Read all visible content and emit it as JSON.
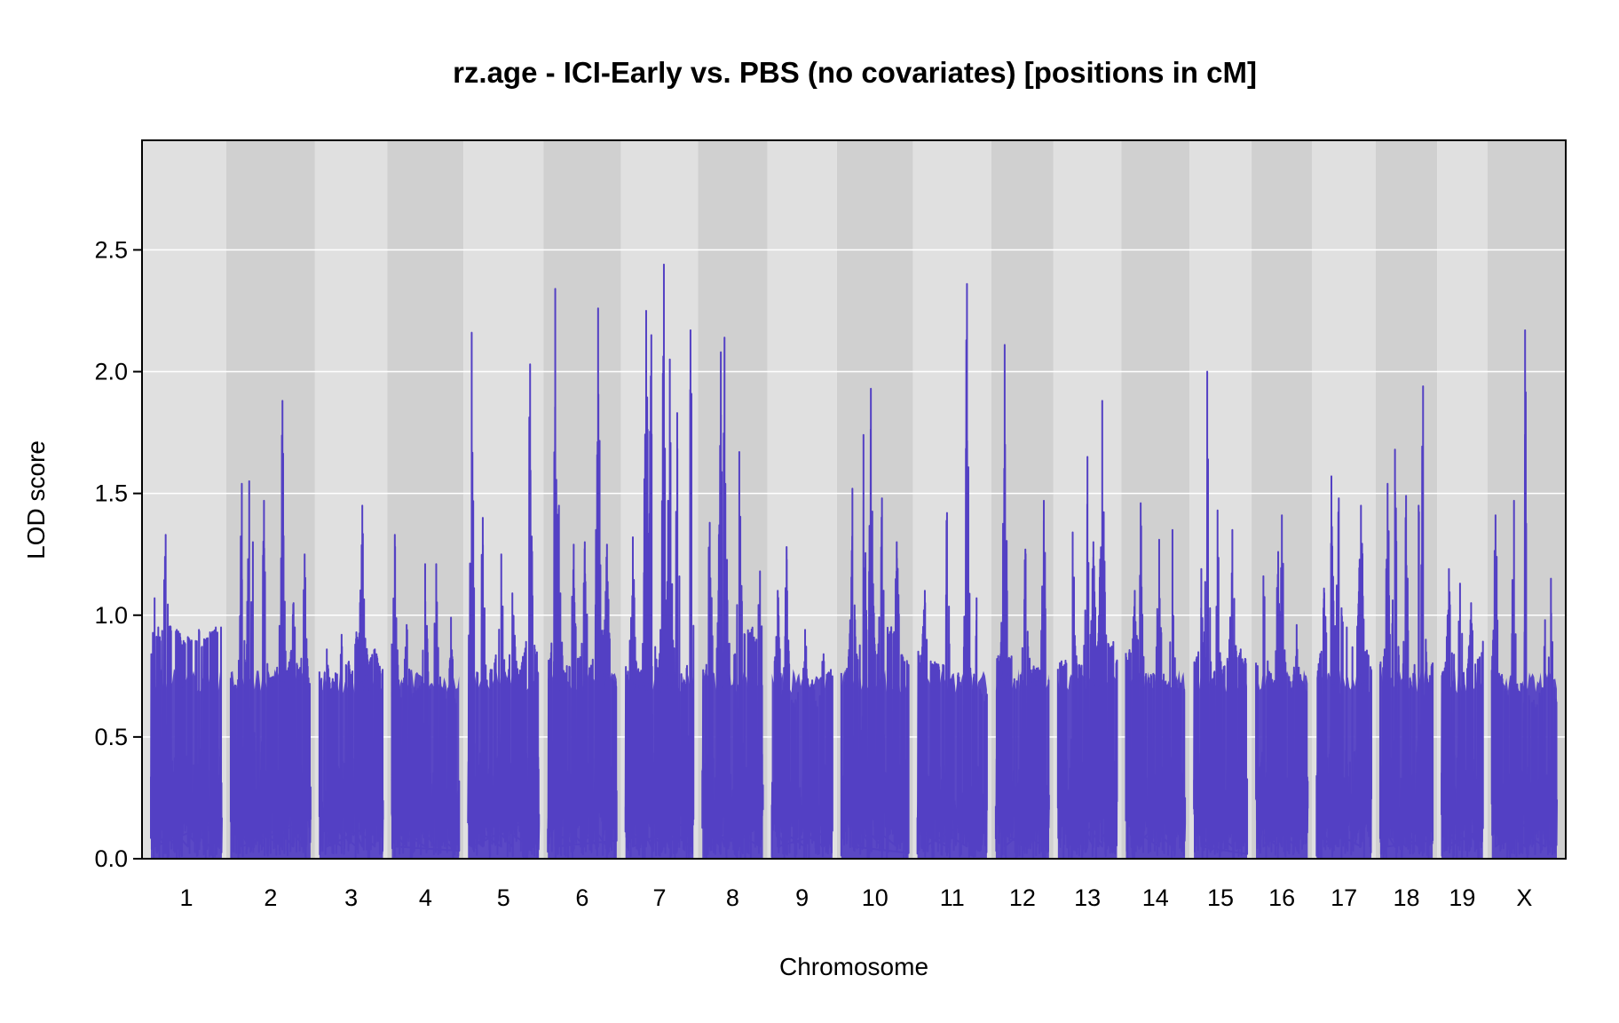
{
  "chart_data": {
    "type": "line",
    "title": "rz.age - ICI-Early vs. PBS (no covariates) [positions in cM]",
    "xlabel": "Chromosome",
    "ylabel": "LOD score",
    "ylim": [
      0,
      2.95
    ],
    "yticks": [
      "0.0",
      "0.5",
      "1.0",
      "1.5",
      "2.0",
      "2.5"
    ],
    "grid": true,
    "series_color": "#5340c4",
    "band_colors": [
      "#e0e0e0",
      "#d0d0d0"
    ],
    "chromosomes": [
      {
        "name": "1",
        "length": 96,
        "peaks": [
          [
            5,
            1.07
          ],
          [
            10,
            0.95
          ],
          [
            20,
            1.33
          ],
          [
            35,
            0.94
          ],
          [
            50,
            0.91
          ],
          [
            65,
            0.94
          ],
          [
            80,
            0.93
          ]
        ]
      },
      {
        "name": "2",
        "length": 108,
        "peaks": [
          [
            15,
            1.54
          ],
          [
            25,
            1.55
          ],
          [
            30,
            1.3
          ],
          [
            45,
            1.47
          ],
          [
            70,
            1.88
          ],
          [
            85,
            1.05
          ],
          [
            100,
            1.25
          ]
        ]
      },
      {
        "name": "3",
        "length": 86,
        "peaks": [
          [
            10,
            0.86
          ],
          [
            30,
            0.92
          ],
          [
            50,
            0.93
          ],
          [
            58,
            1.45
          ],
          [
            75,
            0.86
          ]
        ]
      },
      {
        "name": "4",
        "length": 91,
        "peaks": [
          [
            4,
            1.33
          ],
          [
            20,
            0.96
          ],
          [
            45,
            1.21
          ],
          [
            60,
            1.21
          ],
          [
            80,
            0.99
          ]
        ]
      },
      {
        "name": "5",
        "length": 96,
        "peaks": [
          [
            5,
            2.16
          ],
          [
            20,
            1.4
          ],
          [
            45,
            1.25
          ],
          [
            60,
            1.09
          ],
          [
            84,
            2.03
          ]
        ]
      },
      {
        "name": "6",
        "length": 93,
        "peaks": [
          [
            10,
            2.34
          ],
          [
            15,
            1.45
          ],
          [
            35,
            1.29
          ],
          [
            50,
            1.3
          ],
          [
            68,
            2.26
          ],
          [
            80,
            1.29
          ]
        ]
      },
      {
        "name": "7",
        "length": 92,
        "peaks": [
          [
            10,
            1.32
          ],
          [
            28,
            2.25
          ],
          [
            35,
            2.15
          ],
          [
            52,
            2.44
          ],
          [
            60,
            2.05
          ],
          [
            70,
            1.83
          ],
          [
            88,
            2.17
          ]
        ]
      },
      {
        "name": "8",
        "length": 82,
        "peaks": [
          [
            10,
            1.38
          ],
          [
            25,
            2.08
          ],
          [
            30,
            2.14
          ],
          [
            50,
            1.67
          ],
          [
            78,
            1.18
          ]
        ]
      },
      {
        "name": "9",
        "length": 82,
        "peaks": [
          [
            8,
            1.1
          ],
          [
            20,
            1.28
          ],
          [
            45,
            0.94
          ],
          [
            70,
            0.84
          ]
        ]
      },
      {
        "name": "10",
        "length": 91,
        "peaks": [
          [
            15,
            1.52
          ],
          [
            30,
            1.74
          ],
          [
            40,
            1.93
          ],
          [
            55,
            1.48
          ],
          [
            75,
            1.3
          ]
        ]
      },
      {
        "name": "11",
        "length": 94,
        "peaks": [
          [
            10,
            1.1
          ],
          [
            40,
            1.42
          ],
          [
            67,
            2.36
          ],
          [
            80,
            1.07
          ]
        ]
      },
      {
        "name": "12",
        "length": 72,
        "peaks": [
          [
            12,
            2.11
          ],
          [
            40,
            1.27
          ],
          [
            65,
            1.47
          ]
        ]
      },
      {
        "name": "13",
        "length": 80,
        "peaks": [
          [
            20,
            1.34
          ],
          [
            40,
            1.65
          ],
          [
            48,
            1.3
          ],
          [
            60,
            1.88
          ],
          [
            75,
            0.89
          ]
        ]
      },
      {
        "name": "14",
        "length": 80,
        "peaks": [
          [
            12,
            1.1
          ],
          [
            20,
            1.46
          ],
          [
            45,
            1.31
          ],
          [
            63,
            1.35
          ]
        ]
      },
      {
        "name": "15",
        "length": 72,
        "peaks": [
          [
            10,
            1.19
          ],
          [
            18,
            2.0
          ],
          [
            32,
            1.43
          ],
          [
            52,
            1.35
          ]
        ]
      },
      {
        "name": "16",
        "length": 70,
        "peaks": [
          [
            10,
            1.16
          ],
          [
            30,
            1.26
          ],
          [
            35,
            1.41
          ],
          [
            55,
            0.96
          ]
        ]
      },
      {
        "name": "17",
        "length": 74,
        "peaks": [
          [
            10,
            1.11
          ],
          [
            20,
            1.57
          ],
          [
            30,
            1.48
          ],
          [
            60,
            1.45
          ]
        ]
      },
      {
        "name": "18",
        "length": 71,
        "peaks": [
          [
            10,
            1.54
          ],
          [
            20,
            1.68
          ],
          [
            35,
            1.49
          ],
          [
            52,
            1.45
          ],
          [
            58,
            1.94
          ]
        ]
      },
      {
        "name": "19",
        "length": 56,
        "peaks": [
          [
            10,
            1.19
          ],
          [
            25,
            1.13
          ],
          [
            40,
            1.05
          ],
          [
            50,
            0.8
          ]
        ]
      },
      {
        "name": "X",
        "length": 88,
        "peaks": [
          [
            5,
            1.41
          ],
          [
            30,
            1.47
          ],
          [
            45,
            2.17
          ],
          [
            72,
            0.98
          ],
          [
            80,
            1.15
          ]
        ]
      }
    ]
  }
}
